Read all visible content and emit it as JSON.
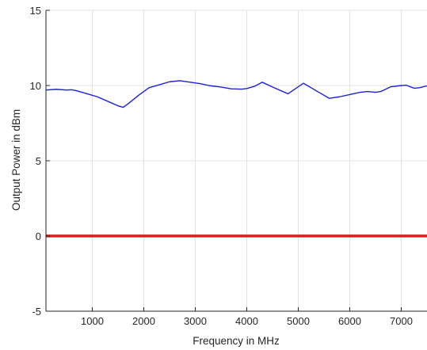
{
  "chart_data": {
    "type": "line",
    "title": "",
    "xlabel": "Frequency in MHz",
    "ylabel": "Output Power in dBm",
    "xlim": [
      100,
      7500
    ],
    "ylim": [
      -5,
      15
    ],
    "x_ticks": [
      1000,
      2000,
      3000,
      4000,
      5000,
      6000,
      7000
    ],
    "y_ticks": [
      -5,
      0,
      5,
      10,
      15
    ],
    "grid": true,
    "legend": "none",
    "series": [
      {
        "color": "#1f1fdf",
        "x": [
          100,
          300,
          500,
          600,
          700,
          900,
          1100,
          1300,
          1500,
          1600,
          1700,
          1900,
          2100,
          2300,
          2500,
          2700,
          2900,
          3100,
          3300,
          3500,
          3700,
          3900,
          4000,
          4150,
          4300,
          4500,
          4800,
          5100,
          5400,
          5600,
          5800,
          6000,
          6200,
          6350,
          6500,
          6600,
          6800,
          7000,
          7100,
          7250,
          7350,
          7500
        ],
        "y": [
          9.7,
          9.75,
          9.7,
          9.72,
          9.65,
          9.45,
          9.25,
          8.95,
          8.65,
          8.55,
          8.8,
          9.35,
          9.85,
          10.05,
          10.25,
          10.32,
          10.22,
          10.12,
          9.98,
          9.9,
          9.78,
          9.76,
          9.8,
          9.95,
          10.22,
          9.9,
          9.45,
          10.15,
          9.55,
          9.15,
          9.25,
          9.4,
          9.55,
          9.6,
          9.55,
          9.6,
          9.92,
          10.0,
          10.02,
          9.82,
          9.85,
          9.98
        ]
      },
      {
        "color": "#e41a1a",
        "x": [
          100,
          7500
        ],
        "y": [
          0,
          0
        ]
      }
    ]
  }
}
